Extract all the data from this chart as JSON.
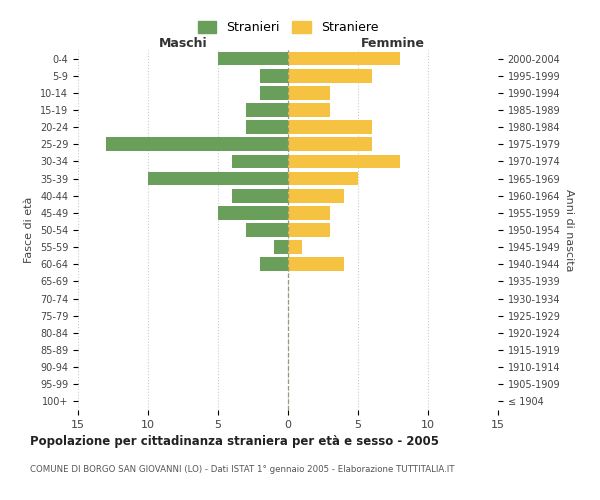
{
  "age_groups": [
    "100+",
    "95-99",
    "90-94",
    "85-89",
    "80-84",
    "75-79",
    "70-74",
    "65-69",
    "60-64",
    "55-59",
    "50-54",
    "45-49",
    "40-44",
    "35-39",
    "30-34",
    "25-29",
    "20-24",
    "15-19",
    "10-14",
    "5-9",
    "0-4"
  ],
  "birth_years": [
    "≤ 1904",
    "1905-1909",
    "1910-1914",
    "1915-1919",
    "1920-1924",
    "1925-1929",
    "1930-1934",
    "1935-1939",
    "1940-1944",
    "1945-1949",
    "1950-1954",
    "1955-1959",
    "1960-1964",
    "1965-1969",
    "1970-1974",
    "1975-1979",
    "1980-1984",
    "1985-1989",
    "1990-1994",
    "1995-1999",
    "2000-2004"
  ],
  "maschi": [
    0,
    0,
    0,
    0,
    0,
    0,
    0,
    0,
    2,
    1,
    3,
    5,
    4,
    10,
    4,
    13,
    3,
    3,
    2,
    2,
    5
  ],
  "femmine": [
    0,
    0,
    0,
    0,
    0,
    0,
    0,
    0,
    4,
    1,
    3,
    3,
    4,
    5,
    8,
    6,
    6,
    3,
    3,
    6,
    8
  ],
  "maschi_color": "#6a9e5b",
  "femmine_color": "#f5c242",
  "title": "Popolazione per cittadinanza straniera per età e sesso - 2005",
  "subtitle": "COMUNE DI BORGO SAN GIOVANNI (LO) - Dati ISTAT 1° gennaio 2005 - Elaborazione TUTTITALIA.IT",
  "ylabel_left": "Fasce di età",
  "ylabel_right": "Anni di nascita",
  "xlabel_left": "Maschi",
  "xlabel_right": "Femmine",
  "legend_maschi": "Stranieri",
  "legend_femmine": "Straniere",
  "xlim": 15,
  "bg_color": "#ffffff",
  "grid_color": "#cccccc",
  "bar_height": 0.8
}
